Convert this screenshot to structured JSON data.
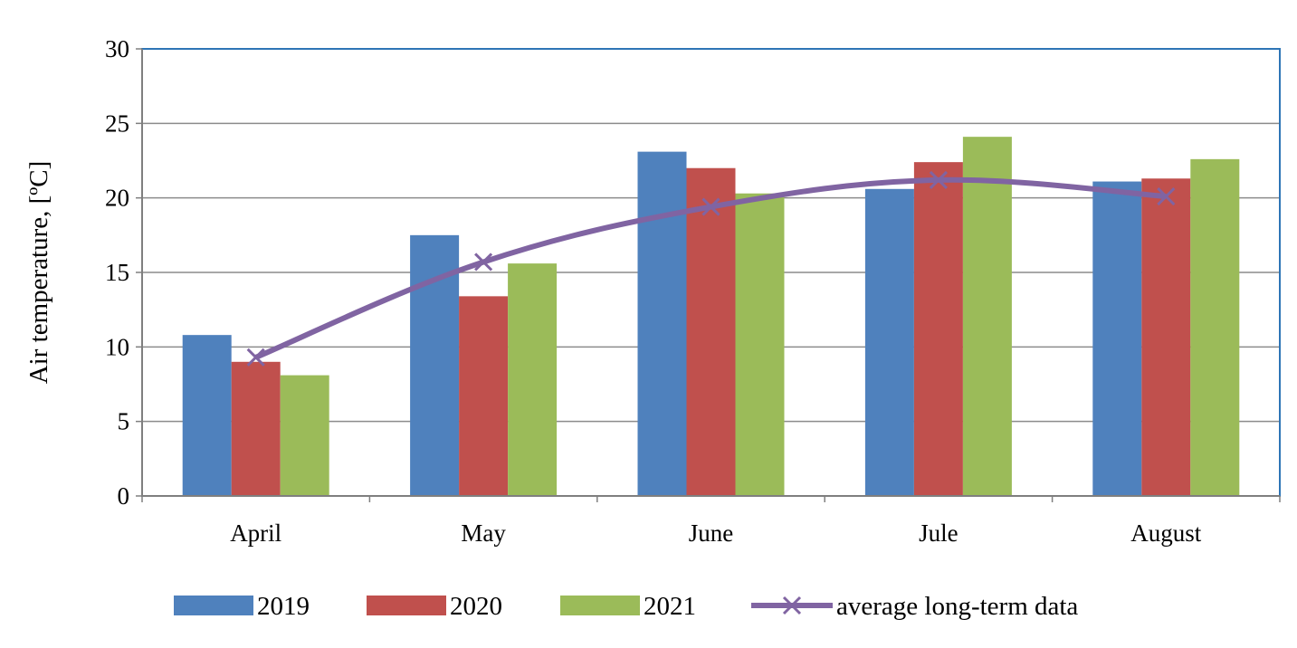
{
  "chart_data": {
    "type": "bar",
    "title": "",
    "xlabel": "",
    "ylabel": "Air temperature, [ºC]",
    "categories": [
      "April",
      "May",
      "June",
      "Jule",
      "August"
    ],
    "ylim": [
      0,
      30
    ],
    "yticks": [
      0,
      5,
      10,
      15,
      20,
      25,
      30
    ],
    "grid": true,
    "legend_position": "bottom",
    "series": [
      {
        "name": "2019",
        "type": "bar",
        "color": "#4F81BD",
        "values": [
          10.8,
          17.5,
          23.1,
          20.6,
          21.1
        ]
      },
      {
        "name": "2020",
        "type": "bar",
        "color": "#C0504D",
        "values": [
          9.0,
          13.4,
          22.0,
          22.4,
          21.3
        ]
      },
      {
        "name": "2021",
        "type": "bar",
        "color": "#9BBB59",
        "values": [
          8.1,
          15.6,
          20.3,
          24.1,
          22.6
        ]
      },
      {
        "name": "average long-term data",
        "type": "line",
        "marker": "x",
        "color": "#8064A2",
        "values": [
          9.3,
          15.7,
          19.4,
          21.2,
          20.1
        ]
      }
    ]
  }
}
